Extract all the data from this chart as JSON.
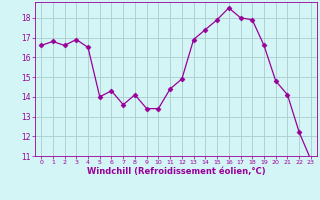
{
  "x": [
    0,
    1,
    2,
    3,
    4,
    5,
    6,
    7,
    8,
    9,
    10,
    11,
    12,
    13,
    14,
    15,
    16,
    17,
    18,
    19,
    20,
    21,
    22,
    23
  ],
  "y": [
    16.6,
    16.8,
    16.6,
    16.9,
    16.5,
    14.0,
    14.3,
    13.6,
    14.1,
    13.4,
    13.4,
    14.4,
    14.9,
    16.9,
    17.4,
    17.9,
    18.5,
    18.0,
    17.9,
    16.6,
    14.8,
    14.1,
    12.2,
    10.8
  ],
  "line_color": "#990099",
  "marker": "D",
  "marker_size": 2.5,
  "bg_color": "#d4f5f5",
  "grid_color": "#aacccc",
  "xlabel": "Windchill (Refroidissement éolien,°C)",
  "xlabel_color": "#990099",
  "tick_color": "#990099",
  "ylim": [
    11,
    18.8
  ],
  "yticks": [
    11,
    12,
    13,
    14,
    15,
    16,
    17,
    18
  ],
  "xlim": [
    -0.5,
    23.5
  ],
  "xticks": [
    0,
    1,
    2,
    3,
    4,
    5,
    6,
    7,
    8,
    9,
    10,
    11,
    12,
    13,
    14,
    15,
    16,
    17,
    18,
    19,
    20,
    21,
    22,
    23
  ]
}
